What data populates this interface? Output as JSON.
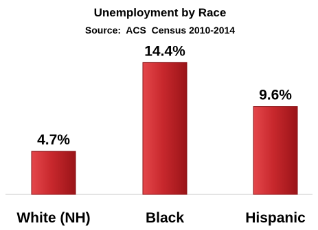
{
  "chart_data": {
    "type": "bar",
    "title": "Unemployment by Race",
    "subtitle": "Source:  ACS  Census 2010-2014",
    "categories": [
      "White (NH)",
      "Black",
      "Hispanic"
    ],
    "values": [
      4.7,
      14.4,
      9.6
    ],
    "data_labels": [
      "4.7%",
      "14.4%",
      "9.6%"
    ],
    "xlabel": "",
    "ylabel": "",
    "ylim": [
      0,
      16
    ],
    "grid": false,
    "legend": "none",
    "colors": {
      "bar_light": "#e4474b",
      "bar_mid": "#c8282d",
      "bar_dark": "#9a1418",
      "bar_stroke": "#8a1216",
      "text": "#000000",
      "axis": "#c8c8c8"
    }
  }
}
